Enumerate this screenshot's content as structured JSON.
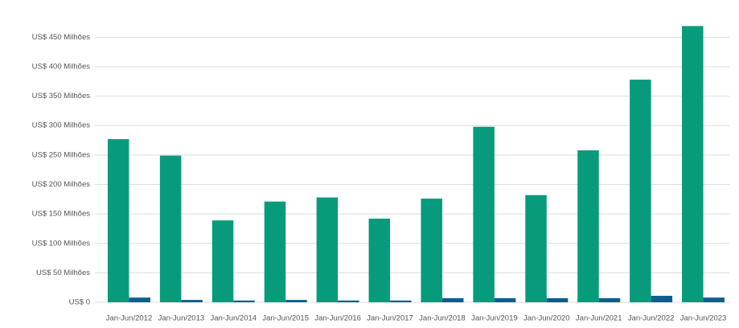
{
  "chart_data": {
    "type": "bar",
    "categories": [
      "Jan-Jun/2012",
      "Jan-Jun/2013",
      "Jan-Jun/2014",
      "Jan-Jun/2015",
      "Jan-Jun/2016",
      "Jan-Jun/2017",
      "Jan-Jun/2018",
      "Jan-Jun/2019",
      "Jan-Jun/2020",
      "Jan-Jun/2021",
      "Jan-Jun/2022",
      "Jan-Jun/2023"
    ],
    "series": [
      {
        "color": "#079b7b",
        "values": [
          277,
          249,
          139,
          171,
          178,
          142,
          176,
          298,
          182,
          258,
          378,
          469
        ]
      },
      {
        "color": "#0e5f8e",
        "values": [
          8,
          4,
          3,
          4,
          3,
          3,
          7,
          7,
          7,
          7,
          11,
          8
        ]
      }
    ],
    "ylim": [
      0,
      475
    ],
    "yticks": [
      {
        "value": 0,
        "label": "US$ 0"
      },
      {
        "value": 50,
        "label": "US$ 50 Milhões"
      },
      {
        "value": 100,
        "label": "US$ 100 Milhões"
      },
      {
        "value": 150,
        "label": "US$ 150 Milhões"
      },
      {
        "value": 200,
        "label": "US$ 200 Milhões"
      },
      {
        "value": 250,
        "label": "US$ 250 Milhões"
      },
      {
        "value": 300,
        "label": "US$ 300 Milhões"
      },
      {
        "value": 350,
        "label": "US$ 350 Milhões"
      },
      {
        "value": 400,
        "label": "US$ 400 Milhões"
      },
      {
        "value": 450,
        "label": "US$ 450 Milhões"
      }
    ],
    "grid": true
  }
}
